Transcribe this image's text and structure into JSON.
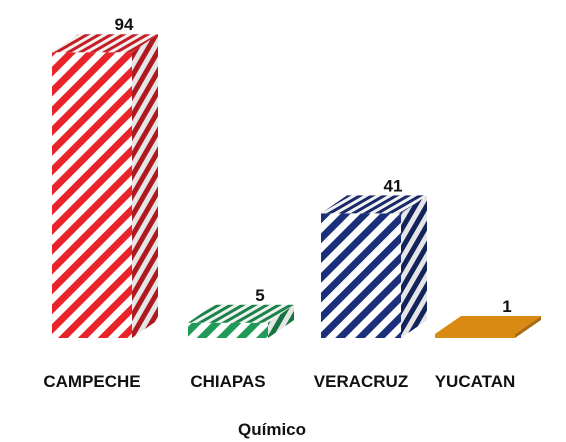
{
  "chart_data": {
    "type": "bar",
    "style": "3d-column",
    "categories": [
      "CAMPECHE",
      "CHIAPAS",
      "VERACRUZ",
      "YUCATAN"
    ],
    "series": [
      {
        "values": [
          94,
          5,
          41,
          1
        ]
      }
    ],
    "data_labels": [
      "94",
      "5",
      "41",
      "1"
    ],
    "xlabel": "Químico",
    "ylabel": "",
    "ylim": [
      0,
      100
    ],
    "grid": false,
    "legend": "none",
    "colors": [
      "#e8232a",
      "#1f9a57",
      "#1c2f7a",
      "#d98a12"
    ],
    "patterns": [
      "diagonal-stripes",
      "diagonal-stripes",
      "diagonal-stripes",
      "solid"
    ]
  }
}
